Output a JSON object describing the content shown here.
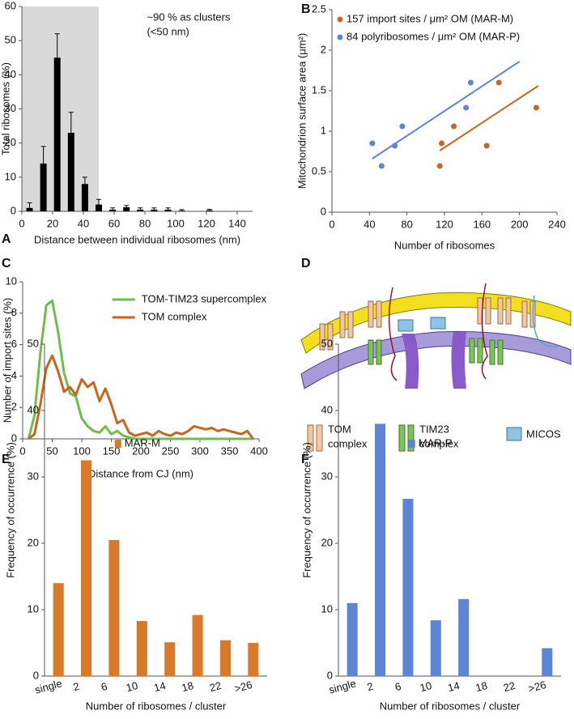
{
  "chart_data": [
    {
      "panel": "A",
      "type": "bar",
      "ylabel": "Total ribosomes (%)",
      "xlabel": "Distance between individual ribosomes (nm)",
      "annotation": [
        "~90 % as clusters",
        "(<50 nm)"
      ],
      "shaded_x": [
        0,
        50
      ],
      "shade_color": "#d9d9d9",
      "color": "#000000",
      "x": [
        5,
        14,
        23,
        32,
        41,
        50,
        59,
        68,
        77,
        86,
        95,
        104,
        122
      ],
      "values": [
        1,
        14,
        45,
        23,
        8,
        2,
        0.5,
        1.2,
        0.5,
        0.5,
        0.5,
        0.2,
        0.3
      ],
      "errors": [
        1.5,
        5,
        7,
        6,
        2,
        1.5,
        0.5,
        0.5,
        0.5,
        0.5,
        0.5,
        0.3,
        0.3
      ],
      "xlim": [
        0,
        150
      ],
      "xticks": [
        0,
        20,
        40,
        60,
        80,
        100,
        120,
        140
      ],
      "ylim": [
        0,
        60
      ],
      "yticks": [
        0,
        10,
        20,
        30,
        40,
        50,
        60
      ]
    },
    {
      "panel": "B",
      "type": "scatter",
      "ylabel": "Mitochondrion surface area (μm²)",
      "xlabel": "Number of ribosomes",
      "legend": "upper left",
      "series": [
        {
          "name": "157 import sites / μm² OM (MAR-M)",
          "color": "#c8671f",
          "x": [
            115,
            117,
            130,
            165,
            178,
            218
          ],
          "values": [
            0.57,
            0.85,
            1.06,
            0.82,
            1.6,
            1.29
          ],
          "trend": {
            "x": [
              115,
              220
            ],
            "values": [
              0.76,
              1.56
            ]
          }
        },
        {
          "name": "84 polyribosomes / μm² OM (MAR-P)",
          "color": "#5b86d6",
          "x": [
            43,
            53,
            67,
            75,
            143,
            148
          ],
          "values": [
            0.85,
            0.57,
            0.82,
            1.06,
            1.29,
            1.6
          ],
          "trend": {
            "x": [
              43,
              200
            ],
            "values": [
              0.66,
              1.86
            ]
          }
        }
      ],
      "xlim": [
        0,
        240
      ],
      "xticks": [
        0,
        40,
        80,
        120,
        160,
        200,
        240
      ],
      "ylim": [
        0,
        2.5
      ],
      "yticks": [
        0,
        0.5,
        1,
        1.5,
        2,
        2.5
      ]
    },
    {
      "panel": "C",
      "type": "line",
      "ylabel": "Number of import sites (%)",
      "xlabel": "Distance from CJ (nm)",
      "legend": "upper right",
      "x": [
        10,
        20,
        30,
        40,
        50,
        60,
        70,
        80,
        90,
        100,
        110,
        120,
        130,
        140,
        150,
        160,
        170,
        180,
        190,
        200,
        210,
        220,
        230,
        240,
        250,
        260,
        270,
        280,
        290,
        300,
        310,
        320,
        330,
        340,
        350,
        360,
        370,
        380,
        390
      ],
      "series": [
        {
          "name": "TOM-TIM23 supercomplex",
          "color": "#6cbf4f",
          "values": [
            0,
            1.5,
            5.5,
            8.5,
            8.8,
            6.8,
            4.2,
            2.9,
            2.7,
            1.3,
            0.8,
            0.5,
            0.4,
            0.8,
            0.3,
            0.5,
            0.2,
            0.1,
            0,
            0,
            0,
            0,
            0,
            0,
            0,
            0,
            0,
            0,
            0,
            0,
            0,
            0,
            0,
            0,
            0,
            0,
            0,
            0,
            0
          ]
        },
        {
          "name": "TOM complex",
          "color": "#c8661e",
          "values": [
            0,
            0.3,
            2.2,
            4.5,
            5.3,
            4.3,
            3.0,
            3.3,
            2.8,
            3.8,
            3.3,
            3.6,
            2.4,
            3.2,
            2.2,
            1.0,
            1.2,
            0.4,
            0.2,
            0.3,
            0.4,
            0.2,
            0.5,
            0.3,
            0.2,
            0.4,
            0.3,
            0.5,
            0.8,
            0.7,
            0.6,
            0.7,
            0.5,
            0.6,
            0.5,
            0.4,
            0.3,
            0.5,
            0
          ]
        }
      ],
      "xlim": [
        0,
        400
      ],
      "xticks": [
        0,
        50,
        100,
        150,
        200,
        250,
        300,
        350,
        400
      ],
      "ylim": [
        0,
        10
      ],
      "yticks": [
        0,
        2,
        4,
        6,
        8,
        10
      ]
    },
    {
      "panel": "E",
      "type": "bar",
      "ylabel": "Frequency of occurrence (%)",
      "xlabel": "Number of ribosomes / cluster",
      "legend": "center",
      "categories": [
        "single",
        "2",
        "6",
        "10",
        "14",
        "18",
        "22",
        ">26"
      ],
      "series": [
        {
          "name": "MAR-M",
          "color": "#d97a2a",
          "values": [
            14,
            32.5,
            20.5,
            8.3,
            5.1,
            9.2,
            5.4,
            5
          ]
        }
      ],
      "ylim": [
        0,
        50
      ],
      "yticks": [
        0,
        10,
        20,
        30,
        40,
        50
      ]
    },
    {
      "panel": "F",
      "type": "bar",
      "ylabel": "Frequency of occurrence (%)",
      "xlabel": "Number of ribosomes / cluster",
      "legend": "center",
      "categories": [
        "single",
        "2",
        "6",
        "10",
        "14",
        "18",
        "22",
        ">26"
      ],
      "series": [
        {
          "name": "MAR-P",
          "color": "#5b86d6",
          "values": [
            11,
            38,
            26.7,
            8.4,
            11.6,
            0,
            0,
            4.2
          ]
        }
      ],
      "ylim": [
        0,
        50
      ],
      "yticks": [
        0,
        10,
        20,
        30,
        40,
        50
      ]
    }
  ],
  "diagram": {
    "panel": "D",
    "legend": [
      [
        "TOM",
        "complex"
      ],
      [
        "TIM23",
        "complex"
      ],
      [
        "MICOS"
      ]
    ]
  }
}
